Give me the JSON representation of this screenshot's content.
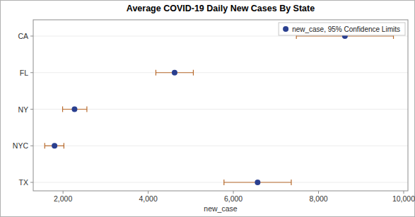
{
  "chart_data": {
    "type": "dot",
    "orientation": "horizontal",
    "title": "Average COVID-19 Daily New Cases By State",
    "x_label": "new_case",
    "categories": [
      "CA",
      "FL",
      "NY",
      "NYC",
      "TX"
    ],
    "series": [
      {
        "name": "new_case, 95% Confidence Limits",
        "color": "#2a3f8f",
        "marker": "circle",
        "values": [
          8620,
          4620,
          2270,
          1800,
          6570
        ],
        "lower": [
          7480,
          4180,
          1990,
          1570,
          5780
        ],
        "upper": [
          9760,
          5060,
          2560,
          2020,
          7360
        ],
        "error_color": "#b86a2c"
      }
    ],
    "xlim": [
      1300,
      10100
    ],
    "xticks": [
      {
        "value": 2000,
        "label": "2,000"
      },
      {
        "value": 4000,
        "label": "4,000"
      },
      {
        "value": 6000,
        "label": "6,000"
      },
      {
        "value": 8000,
        "label": "8,000"
      },
      {
        "value": 10000,
        "label": "10,000"
      }
    ],
    "grid": true,
    "legend": "top-right"
  }
}
